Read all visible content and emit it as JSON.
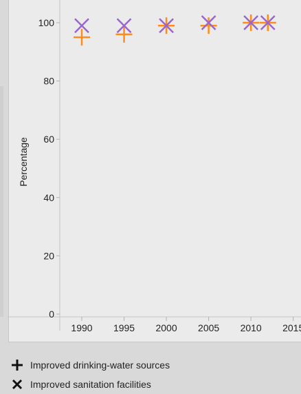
{
  "chart_data": {
    "type": "scatter",
    "title": "",
    "xlabel": "",
    "ylabel": "Percentage",
    "xlim": [
      1987.4,
      2016
    ],
    "ylim": [
      0,
      100
    ],
    "x_ticks": [
      "1990",
      "1995",
      "2000",
      "2005",
      "2010",
      "2015"
    ],
    "y_ticks": [
      "0",
      "20",
      "40",
      "60",
      "80",
      "100"
    ],
    "grid": false,
    "legend_position": "bottom",
    "series": [
      {
        "name": "Improved drinking-water sources",
        "marker": "plus",
        "color": "#ff8c1a",
        "x": [
          1990,
          1995,
          2000,
          2005,
          2010,
          2012
        ],
        "y": [
          95,
          96,
          99,
          99,
          100,
          100
        ]
      },
      {
        "name": "Improved sanitation facilities",
        "marker": "cross",
        "color": "#9966cc",
        "x": [
          1990,
          1995,
          2000,
          2005,
          2010,
          2012
        ],
        "y": [
          99,
          99,
          99,
          100,
          100,
          100
        ]
      }
    ]
  }
}
